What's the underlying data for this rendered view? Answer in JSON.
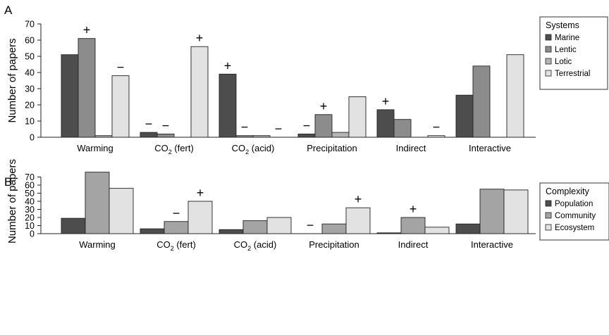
{
  "chart_data": [
    {
      "type": "bar",
      "panel": "A",
      "ylabel": "Number of papers",
      "ylim": [
        0,
        70
      ],
      "yticks": [
        0,
        10,
        20,
        30,
        40,
        50,
        60,
        70
      ],
      "categories": [
        {
          "label": "Warming",
          "sub": "",
          "suffix": ""
        },
        {
          "label": "CO",
          "sub": "2",
          "suffix": " (fert)"
        },
        {
          "label": "CO",
          "sub": "2",
          "suffix": " (acid)"
        },
        {
          "label": "Precipitation",
          "sub": "",
          "suffix": ""
        },
        {
          "label": "Indirect",
          "sub": "",
          "suffix": ""
        },
        {
          "label": "Interactive",
          "sub": "",
          "suffix": ""
        }
      ],
      "legend_title": "Systems",
      "legend_position": "top-right",
      "series": [
        {
          "name": "Marine",
          "color": "#4d4d4d",
          "values": [
            51,
            3,
            39,
            2,
            17,
            26
          ],
          "marks": [
            "",
            "−",
            "+",
            "−",
            "+",
            ""
          ]
        },
        {
          "name": "Lentic",
          "color": "#8c8c8c",
          "values": [
            61,
            2,
            1,
            14,
            11,
            44
          ],
          "marks": [
            "+",
            "−",
            "−",
            "+",
            "",
            ""
          ]
        },
        {
          "name": "Lotic",
          "color": "#b4b4b4",
          "values": [
            1,
            0,
            1,
            3,
            0,
            0
          ],
          "marks": [
            "",
            "",
            "",
            "",
            "",
            ""
          ]
        },
        {
          "name": "Terrestrial",
          "color": "#e2e2e2",
          "values": [
            38,
            56,
            0,
            25,
            1,
            51
          ],
          "marks": [
            "−",
            "+",
            "−",
            "",
            "−",
            ""
          ]
        }
      ]
    },
    {
      "type": "bar",
      "panel": "B",
      "ylabel": "Number of papers",
      "ylim": [
        0,
        80
      ],
      "yticks": [
        0,
        10,
        20,
        30,
        40,
        50,
        60,
        70
      ],
      "categories": [
        {
          "label": "Warming",
          "sub": "",
          "suffix": ""
        },
        {
          "label": "CO",
          "sub": "2",
          "suffix": " (fert)"
        },
        {
          "label": "CO",
          "sub": "2",
          "suffix": " (acid)"
        },
        {
          "label": "Precipitation",
          "sub": "",
          "suffix": ""
        },
        {
          "label": "Indirect",
          "sub": "",
          "suffix": ""
        },
        {
          "label": "Interactive",
          "sub": "",
          "suffix": ""
        }
      ],
      "legend_title": "Complexity",
      "legend_position": "top-right",
      "series": [
        {
          "name": "Population",
          "color": "#4d4d4d",
          "values": [
            19,
            6,
            5,
            0,
            1,
            12
          ],
          "marks": [
            "",
            "",
            "",
            "−",
            "",
            ""
          ]
        },
        {
          "name": "Community",
          "color": "#a4a4a4",
          "values": [
            76,
            15,
            16,
            12,
            20,
            55
          ],
          "marks": [
            "",
            "−",
            "",
            "",
            "+",
            ""
          ]
        },
        {
          "name": "Ecosystem",
          "color": "#e2e2e2",
          "values": [
            56,
            40,
            20,
            32,
            8,
            54
          ],
          "marks": [
            "",
            "+",
            "",
            "+",
            "",
            ""
          ]
        }
      ]
    }
  ]
}
